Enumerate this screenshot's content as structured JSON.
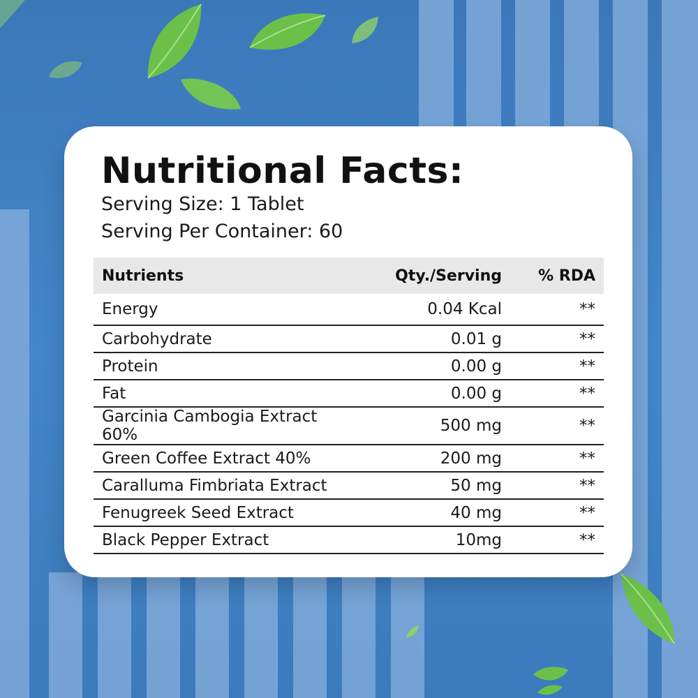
{
  "card": {
    "title": "Nutritional Facts:",
    "serving_size": "Serving Size: 1 Tablet",
    "serving_per_container": "Serving Per Container: 60"
  },
  "table": {
    "headers": [
      "Nutrients",
      "Qty./Serving",
      "% RDA"
    ],
    "rows": [
      {
        "nutrient": "Energy",
        "qty": "0.04 Kcal",
        "rda": "**"
      },
      {
        "nutrient": "Carbohydrate",
        "qty": "0.01 g",
        "rda": "**"
      },
      {
        "nutrient": "Protein",
        "qty": "0.00 g",
        "rda": "**"
      },
      {
        "nutrient": "Fat",
        "qty": "0.00 g",
        "rda": "**"
      },
      {
        "nutrient": "Garcinia Cambogia Extract 60%",
        "qty": "500 mg",
        "rda": "**"
      },
      {
        "nutrient": "Green Coffee Extract 40%",
        "qty": "200 mg",
        "rda": "**"
      },
      {
        "nutrient": "Caralluma Fimbriata Extract",
        "qty": "50 mg",
        "rda": "**"
      },
      {
        "nutrient": "Fenugreek Seed Extract",
        "qty": "40 mg",
        "rda": "**"
      },
      {
        "nutrient": "Black Pepper Extract",
        "qty": "10mg",
        "rda": "**"
      }
    ]
  },
  "colors": {
    "background": "#3f7fc0",
    "stripe": "#7fa9d8",
    "leaf": "#6cc04a",
    "header_row": "#e8e8e8"
  },
  "icons": [
    "leaf-icon"
  ]
}
